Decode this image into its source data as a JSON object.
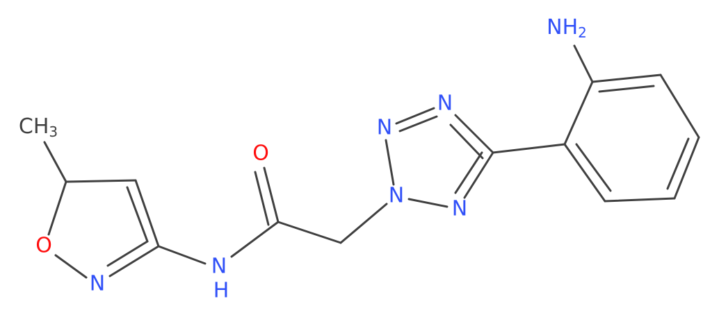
{
  "atoms": [
    {
      "text": "NH",
      "sub": "2"
    },
    {
      "text": "CH",
      "sub": "3"
    },
    {
      "text": "O"
    },
    {
      "text": "N"
    },
    {
      "text": "N"
    },
    {
      "text": "N"
    },
    {
      "text": "N"
    },
    {
      "text": "O"
    },
    {
      "text": "N"
    },
    {
      "text": "N"
    },
    {
      "text": "H"
    }
  ]
}
